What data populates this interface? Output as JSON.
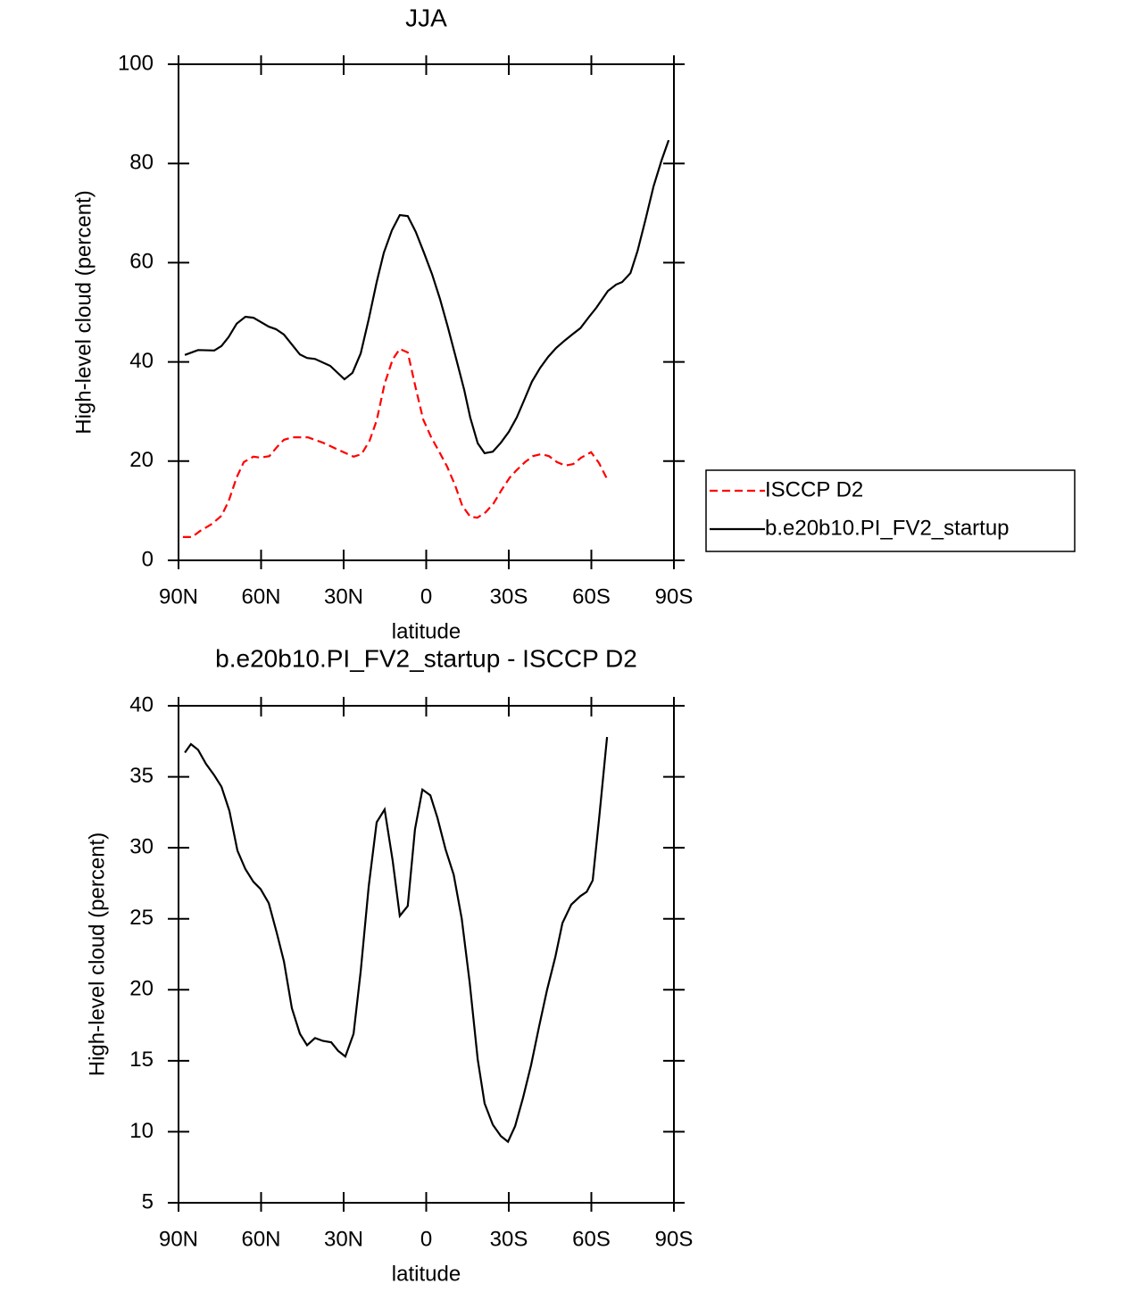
{
  "chart_data": [
    {
      "type": "line",
      "title": "JJA",
      "xlabel": "latitude",
      "ylabel": "High-level cloud (percent)",
      "xlim": [
        90,
        -90
      ],
      "ylim": [
        0,
        100
      ],
      "xticks": [
        {
          "value": 90,
          "label": "90N"
        },
        {
          "value": 60,
          "label": "60N"
        },
        {
          "value": 30,
          "label": "30N"
        },
        0,
        {
          "value": -30,
          "label": "30S"
        },
        {
          "value": -60,
          "label": "60S"
        },
        {
          "value": -90,
          "label": "90S"
        }
      ],
      "yticks": [
        0,
        20,
        40,
        60,
        80,
        100
      ],
      "grid": false,
      "legend": "right",
      "series": [
        {
          "name": "ISCCP D2",
          "color": "#ff0000",
          "dashed": true,
          "x": [
            88.4,
            85.1,
            82.2,
            77.7,
            74.4,
            71.8,
            68.9,
            66.3,
            62.8,
            60.2,
            57,
            54.3,
            51.7,
            48.5,
            43,
            37.5,
            32,
            26.4,
            23.5,
            20.6,
            18,
            15.1,
            12.2,
            9.6,
            6.7,
            3.8,
            1.1,
            -1.8,
            -4.7,
            -7.6,
            -10.5,
            -13.1,
            -16,
            -18.6,
            -21.6,
            -24.5,
            -27.4,
            -30.4,
            -32.9,
            -35.9,
            -38.8,
            -41.7,
            -44.6,
            -47.5,
            -50.5,
            -53.4,
            -56.3,
            -59.9,
            -62.8,
            -65.7
          ],
          "values": [
            4.7,
            4.7,
            5.9,
            7.4,
            9,
            11.9,
            16.7,
            19.8,
            20.9,
            20.7,
            21,
            22.8,
            24.3,
            24.8,
            24.8,
            23.7,
            22.3,
            20.9,
            21.4,
            24.1,
            28.2,
            35.6,
            40.5,
            42.6,
            41.9,
            34.7,
            28.4,
            24.8,
            21.9,
            18.9,
            15.1,
            11,
            8.8,
            8.6,
            9.7,
            11.5,
            14.2,
            16.7,
            18.2,
            19.8,
            21,
            21.4,
            21,
            19.8,
            19.1,
            19.4,
            20.7,
            21.8,
            19.6,
            16.4
          ]
        },
        {
          "name": "b.e20b10.PI_FV2_startup",
          "color": "#000000",
          "dashed": false,
          "x": [
            87.7,
            82.9,
            77,
            74.4,
            71.8,
            68.9,
            65.7,
            62.8,
            57.2,
            54.6,
            51.7,
            45.9,
            43.3,
            40.4,
            34.9,
            29.7,
            26.8,
            23.8,
            20.9,
            18,
            15.4,
            12.5,
            9.6,
            6.7,
            3.8,
            0.8,
            -2.1,
            -5,
            -7.9,
            -10.9,
            -13.8,
            -16,
            -18.7,
            -21.2,
            -24.2,
            -27.1,
            -30,
            -32.9,
            -35.5,
            -38.4,
            -41.4,
            -44.3,
            -47.2,
            -50.1,
            -53,
            -56,
            -59.2,
            -61.8,
            -66,
            -69,
            -71.2,
            -74.2,
            -76.8,
            -79.7,
            -82.6,
            -85.5,
            -88.1
          ],
          "values": [
            41.4,
            42.4,
            42.3,
            43.2,
            45,
            47.7,
            49.1,
            48.9,
            47.1,
            46.6,
            45.5,
            41.5,
            40.8,
            40.6,
            39.2,
            36.5,
            37.8,
            41.7,
            48.6,
            56.1,
            62,
            66.5,
            69.6,
            69.4,
            66.2,
            62,
            57.7,
            52.7,
            46.9,
            40.6,
            34.4,
            28.8,
            23.6,
            21.6,
            21.9,
            23.7,
            25.9,
            28.8,
            32.2,
            36,
            38.8,
            41,
            42.8,
            44.2,
            45.5,
            46.8,
            49.1,
            50.9,
            54.3,
            55.6,
            56.1,
            57.9,
            62.4,
            68.7,
            75.4,
            80.6,
            84.7
          ]
        }
      ]
    },
    {
      "type": "line",
      "title": "b.e20b10.PI_FV2_startup - ISCCP D2",
      "xlabel": "latitude",
      "ylabel": "High-level cloud (percent)",
      "xlim": [
        90,
        -90
      ],
      "ylim": [
        5,
        40
      ],
      "xticks": [
        {
          "value": 90,
          "label": "90N"
        },
        {
          "value": 60,
          "label": "60N"
        },
        {
          "value": 30,
          "label": "30N"
        },
        0,
        {
          "value": -30,
          "label": "30S"
        },
        {
          "value": -60,
          "label": "60S"
        },
        {
          "value": -90,
          "label": "90S"
        }
      ],
      "yticks": [
        5,
        10,
        15,
        20,
        25,
        30,
        35,
        40
      ],
      "grid": false,
      "series": [
        {
          "color": "#000000",
          "dashed": false,
          "x": [
            87.7,
            85.5,
            82.9,
            80,
            77,
            74.4,
            71.5,
            68.6,
            65.7,
            62.8,
            60.2,
            57.2,
            54.3,
            51.7,
            48.8,
            45.9,
            43.3,
            40.4,
            37.5,
            34.5,
            32,
            29.4,
            26.4,
            23.8,
            20.9,
            18,
            15.1,
            12.2,
            9.6,
            6.7,
            4.1,
            1.4,
            -1.5,
            -4.1,
            -7,
            -10,
            -12.9,
            -15.8,
            -18.7,
            -21.2,
            -24.2,
            -27.1,
            -29.7,
            -32.3,
            -35.2,
            -38.1,
            -41,
            -43.9,
            -46.9,
            -49.5,
            -52.7,
            -56,
            -58.3,
            -60.5,
            -62.8,
            -65.7
          ],
          "values": [
            36.7,
            37.3,
            36.9,
            35.9,
            35.1,
            34.3,
            32.6,
            29.8,
            28.5,
            27.6,
            27.1,
            26.1,
            24,
            22,
            18.7,
            16.9,
            16.1,
            16.6,
            16.4,
            16.3,
            15.7,
            15.3,
            16.9,
            21.3,
            27.3,
            31.8,
            32.7,
            29.1,
            25.2,
            25.9,
            31.3,
            34.1,
            33.7,
            32.1,
            29.9,
            28.1,
            25,
            20.5,
            15.1,
            12,
            10.5,
            9.7,
            9.3,
            10.4,
            12.4,
            14.7,
            17.4,
            20,
            22.3,
            24.7,
            26,
            26.6,
            26.9,
            27.7,
            32,
            37.8
          ]
        }
      ]
    }
  ]
}
